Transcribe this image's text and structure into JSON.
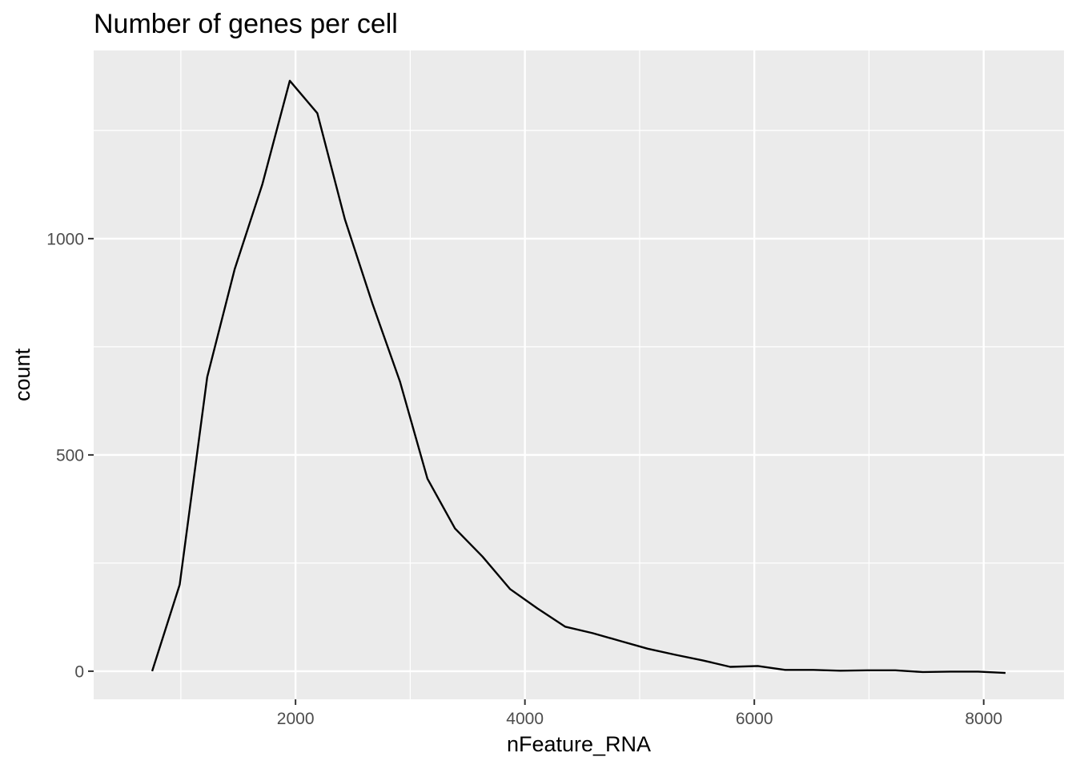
{
  "chart_data": {
    "type": "line",
    "title": "Number of genes per cell",
    "xlabel": "nFeature_RNA",
    "ylabel": "count",
    "xlim": [
      240,
      8700
    ],
    "ylim": [
      -65,
      1435
    ],
    "x_ticks": [
      2000,
      4000,
      6000,
      8000
    ],
    "y_ticks": [
      0,
      500,
      1000
    ],
    "grid": true,
    "legend": "none",
    "colors": {
      "panel": "#ebebeb",
      "grid": "#ffffff",
      "line": "#000000",
      "tick_text": "#4d4d4d"
    },
    "series": [
      {
        "x": [
          750,
          990,
          1230,
          1470,
          1710,
          1950,
          2190,
          2430,
          2670,
          2910,
          3150,
          3390,
          3630,
          3870,
          4110,
          4350,
          4590,
          4830,
          5070,
          5310,
          5550,
          5790,
          6030,
          6270,
          6510,
          6750,
          6990,
          7230,
          7470,
          7710,
          7950,
          8190
        ],
        "values": [
          0,
          200,
          680,
          930,
          1125,
          1365,
          1290,
          1045,
          850,
          670,
          445,
          330,
          265,
          190,
          145,
          103,
          88,
          70,
          52,
          38,
          25,
          10,
          12,
          3,
          3,
          1,
          2,
          2,
          -2,
          -1,
          -1,
          -4
        ]
      }
    ]
  }
}
